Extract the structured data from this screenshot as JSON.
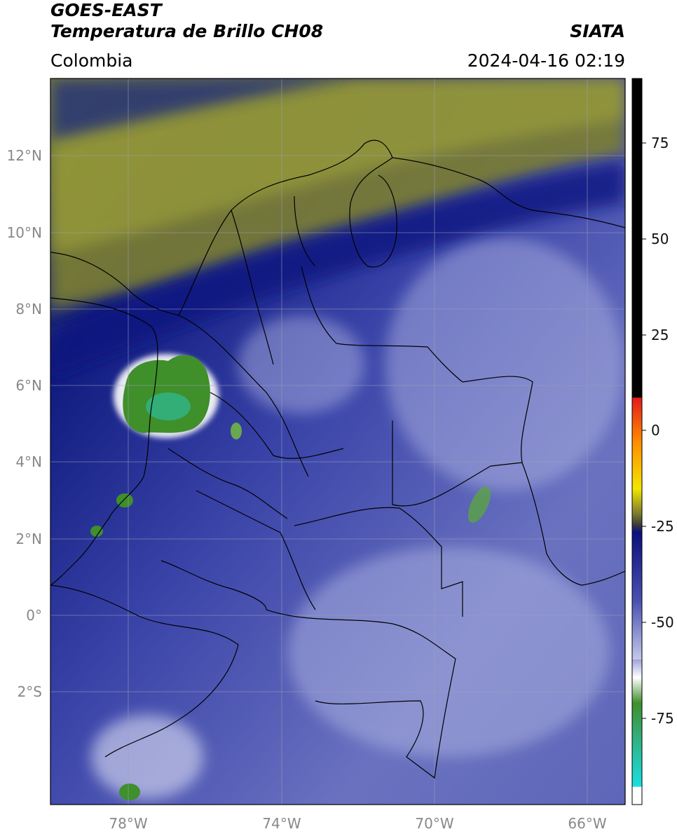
{
  "header": {
    "satellite": "GOES-EAST",
    "product": "Temperatura de Brillo CH08",
    "region": "Colombia",
    "agency": "SIATA",
    "timestamp": "2024-04-16 02:19"
  },
  "map": {
    "lat_labels": [
      "12°N",
      "10°N",
      "8°N",
      "6°N",
      "4°N",
      "2°N",
      "0°",
      "2°S"
    ],
    "lon_labels": [
      "78°W",
      "74°W",
      "70°W",
      "66°W"
    ],
    "gridline_color": "#9aa0b8"
  },
  "colorbar": {
    "tick_labels": [
      "75",
      "50",
      "25",
      "0",
      "-25",
      "-50",
      "-75"
    ],
    "colors": {
      "black_top": "#000000",
      "red": "#e31a1c",
      "orange": "#ff8c00",
      "yellow": "#f2e600",
      "olive": "#7a7a2e",
      "dark_gray": "#3a3a3a",
      "navy": "#0b0f7a",
      "blue": "#4a52b0",
      "lavender": "#c5c8ea",
      "white": "#ffffff",
      "green": "#3f8f2a",
      "teal": "#2fb58a",
      "cyan": "#19e0e0"
    }
  }
}
